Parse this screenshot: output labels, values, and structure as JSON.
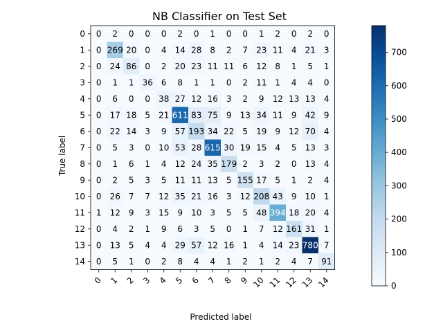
{
  "chart_data": {
    "type": "heatmap",
    "title": "NB Classifier on Test Set",
    "xlabel": "Predicted label",
    "ylabel": "True label",
    "x_tick_labels": [
      "0",
      "1",
      "2",
      "3",
      "4",
      "5",
      "6",
      "7",
      "8",
      "9",
      "10",
      "11",
      "12",
      "13",
      "14"
    ],
    "y_tick_labels": [
      "0",
      "1",
      "2",
      "3",
      "4",
      "5",
      "6",
      "7",
      "8",
      "9",
      "10",
      "11",
      "12",
      "13",
      "14"
    ],
    "colormap": "Blues",
    "color_range": [
      0,
      780
    ],
    "colorbar_ticks": [
      0,
      100,
      200,
      300,
      400,
      500,
      600,
      700
    ],
    "matrix": [
      [
        0,
        2,
        0,
        0,
        0,
        2,
        0,
        1,
        0,
        0,
        1,
        2,
        0,
        2,
        0
      ],
      [
        0,
        269,
        20,
        0,
        4,
        14,
        28,
        8,
        2,
        7,
        23,
        11,
        4,
        21,
        3
      ],
      [
        0,
        24,
        86,
        0,
        2,
        20,
        23,
        11,
        11,
        6,
        12,
        8,
        1,
        5,
        1
      ],
      [
        0,
        1,
        1,
        36,
        6,
        8,
        1,
        1,
        0,
        2,
        11,
        1,
        4,
        4,
        0
      ],
      [
        0,
        6,
        0,
        0,
        38,
        27,
        12,
        16,
        3,
        2,
        9,
        12,
        13,
        13,
        4
      ],
      [
        0,
        17,
        18,
        5,
        21,
        611,
        83,
        75,
        9,
        13,
        34,
        11,
        9,
        42,
        9
      ],
      [
        0,
        22,
        14,
        3,
        9,
        57,
        193,
        34,
        22,
        5,
        19,
        9,
        12,
        70,
        4
      ],
      [
        0,
        5,
        3,
        0,
        10,
        53,
        28,
        615,
        30,
        19,
        15,
        4,
        5,
        13,
        3
      ],
      [
        0,
        1,
        6,
        1,
        4,
        12,
        24,
        35,
        179,
        2,
        3,
        2,
        0,
        13,
        4
      ],
      [
        0,
        2,
        5,
        3,
        5,
        11,
        11,
        13,
        5,
        155,
        17,
        5,
        1,
        2,
        4
      ],
      [
        0,
        26,
        7,
        7,
        12,
        35,
        21,
        16,
        3,
        12,
        208,
        43,
        9,
        10,
        1
      ],
      [
        1,
        12,
        9,
        3,
        15,
        9,
        10,
        3,
        5,
        5,
        48,
        394,
        18,
        20,
        4
      ],
      [
        0,
        4,
        2,
        1,
        9,
        6,
        3,
        5,
        0,
        1,
        7,
        12,
        161,
        31,
        1
      ],
      [
        0,
        13,
        5,
        4,
        4,
        29,
        57,
        12,
        16,
        1,
        4,
        14,
        23,
        780,
        7
      ],
      [
        0,
        5,
        1,
        0,
        2,
        8,
        4,
        4,
        1,
        2,
        1,
        2,
        4,
        7,
        91
      ]
    ]
  }
}
